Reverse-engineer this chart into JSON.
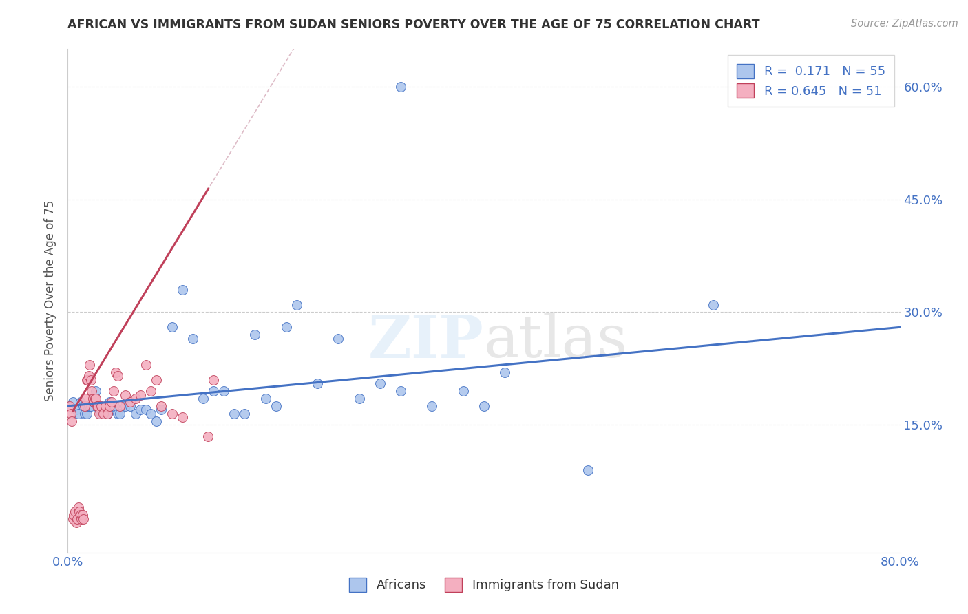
{
  "title": "AFRICAN VS IMMIGRANTS FROM SUDAN SENIORS POVERTY OVER THE AGE OF 75 CORRELATION CHART",
  "source": "Source: ZipAtlas.com",
  "ylabel": "Seniors Poverty Over the Age of 75",
  "xlim": [
    0.0,
    0.8
  ],
  "ylim": [
    -0.02,
    0.65
  ],
  "ytick_positions": [
    0.0,
    0.15,
    0.3,
    0.45,
    0.6
  ],
  "ytick_labels": [
    "",
    "15.0%",
    "30.0%",
    "45.0%",
    "60.0%"
  ],
  "R_africans": 0.171,
  "N_africans": 55,
  "R_sudan": 0.645,
  "N_sudan": 51,
  "color_africans": "#adc6ed",
  "color_sudan": "#f4afc0",
  "line_color_africans": "#4472c4",
  "line_color_sudan": "#c0405a",
  "africans_x": [
    0.005,
    0.008,
    0.01,
    0.012,
    0.015,
    0.016,
    0.018,
    0.019,
    0.02,
    0.021,
    0.022,
    0.025,
    0.027,
    0.03,
    0.032,
    0.035,
    0.038,
    0.04,
    0.042,
    0.045,
    0.048,
    0.05,
    0.055,
    0.06,
    0.065,
    0.07,
    0.075,
    0.08,
    0.085,
    0.09,
    0.1,
    0.11,
    0.12,
    0.13,
    0.14,
    0.15,
    0.16,
    0.17,
    0.18,
    0.19,
    0.2,
    0.21,
    0.22,
    0.24,
    0.26,
    0.28,
    0.3,
    0.32,
    0.35,
    0.38,
    0.4,
    0.42,
    0.5,
    0.62,
    0.32
  ],
  "africans_y": [
    0.18,
    0.17,
    0.165,
    0.18,
    0.175,
    0.165,
    0.165,
    0.175,
    0.175,
    0.175,
    0.175,
    0.18,
    0.195,
    0.17,
    0.165,
    0.165,
    0.165,
    0.18,
    0.175,
    0.175,
    0.165,
    0.165,
    0.175,
    0.175,
    0.165,
    0.17,
    0.17,
    0.165,
    0.155,
    0.17,
    0.28,
    0.33,
    0.265,
    0.185,
    0.195,
    0.195,
    0.165,
    0.165,
    0.27,
    0.185,
    0.175,
    0.28,
    0.31,
    0.205,
    0.265,
    0.185,
    0.205,
    0.195,
    0.175,
    0.195,
    0.175,
    0.22,
    0.09,
    0.31,
    0.6
  ],
  "sudan_x": [
    0.002,
    0.003,
    0.004,
    0.005,
    0.006,
    0.007,
    0.008,
    0.009,
    0.01,
    0.011,
    0.012,
    0.013,
    0.014,
    0.015,
    0.016,
    0.017,
    0.018,
    0.019,
    0.02,
    0.021,
    0.022,
    0.023,
    0.024,
    0.025,
    0.026,
    0.027,
    0.028,
    0.029,
    0.03,
    0.032,
    0.034,
    0.036,
    0.038,
    0.04,
    0.042,
    0.044,
    0.046,
    0.048,
    0.05,
    0.055,
    0.06,
    0.065,
    0.07,
    0.075,
    0.08,
    0.085,
    0.09,
    0.1,
    0.11,
    0.135,
    0.14
  ],
  "sudan_y": [
    0.175,
    0.165,
    0.155,
    0.025,
    0.03,
    0.035,
    0.02,
    0.025,
    0.04,
    0.035,
    0.03,
    0.025,
    0.03,
    0.025,
    0.175,
    0.185,
    0.21,
    0.21,
    0.215,
    0.23,
    0.21,
    0.195,
    0.185,
    0.18,
    0.185,
    0.185,
    0.175,
    0.175,
    0.165,
    0.175,
    0.165,
    0.175,
    0.165,
    0.175,
    0.18,
    0.195,
    0.22,
    0.215,
    0.175,
    0.19,
    0.18,
    0.185,
    0.19,
    0.23,
    0.195,
    0.21,
    0.175,
    0.165,
    0.16,
    0.135,
    0.21
  ]
}
